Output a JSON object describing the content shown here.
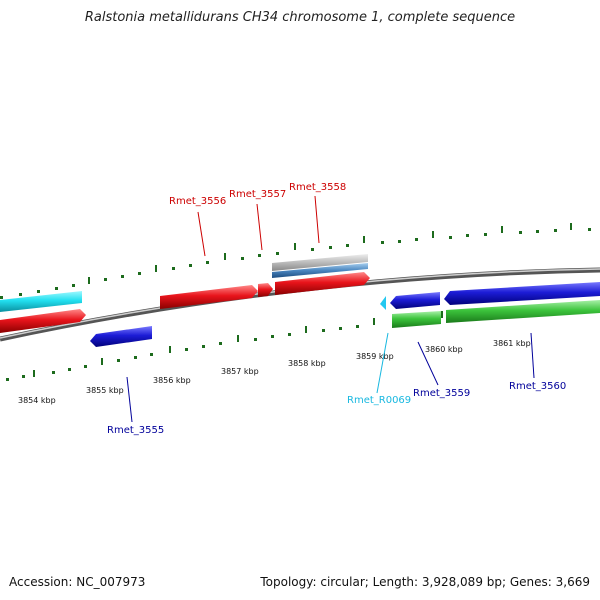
{
  "title": "Ralstonia metallidurans CH34 chromosome 1, complete sequence",
  "footer": {
    "accession": "Accession: NC_007973",
    "topology": "Topology: circular; Length: 3,928,089 bp; Genes: 3,669"
  },
  "colors": {
    "red": "#e8141b",
    "blue": "#1c1cd6",
    "green": "#3cc43c",
    "cyan": "#22e0f0",
    "gray": "#bbbbbb",
    "steel": "#4a86c0",
    "tick": "#1d6b1d",
    "label_red": "#cc0000",
    "label_blue": "#00009a",
    "label_cyan": "#18b8e0"
  },
  "scale": [
    {
      "label": "3854 kbp",
      "kbp": 3854
    },
    {
      "label": "3855 kbp",
      "kbp": 3855
    },
    {
      "label": "3856 kbp",
      "kbp": 3856
    },
    {
      "label": "3857 kbp",
      "kbp": 3857
    },
    {
      "label": "3858 kbp",
      "kbp": 3858
    },
    {
      "label": "3859 kbp",
      "kbp": 3859
    },
    {
      "label": "3860 kbp",
      "kbp": 3860
    },
    {
      "label": "3861 kbp",
      "kbp": 3861
    }
  ],
  "features": [
    {
      "name": "Rmet_3555",
      "color": "label_blue"
    },
    {
      "name": "Rmet_3556",
      "color": "label_red"
    },
    {
      "name": "Rmet_3557",
      "color": "label_red"
    },
    {
      "name": "Rmet_3558",
      "color": "label_red"
    },
    {
      "name": "Rmet_R0069",
      "color": "label_cyan"
    },
    {
      "name": "Rmet_3559",
      "color": "label_blue"
    },
    {
      "name": "Rmet_3560",
      "color": "label_blue"
    }
  ]
}
